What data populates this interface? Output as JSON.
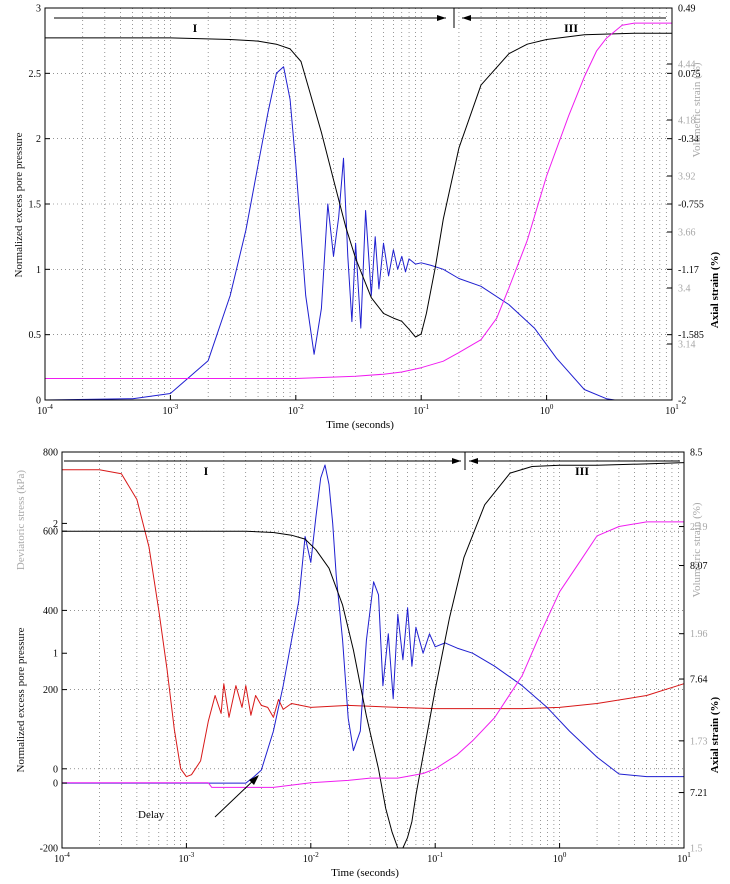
{
  "colors": {
    "black": "#000000",
    "blue": "#1f1fd0",
    "magenta": "#f01cf0",
    "red": "#d81818",
    "gray_label": "#a8a8a8"
  },
  "chart_data": [
    {
      "type": "line",
      "xscale": "log",
      "xlim": [
        0.0001,
        10
      ],
      "xlabel": "Time (seconds)",
      "x_ticks": [
        "10^-4",
        "10^-3",
        "10^-2",
        "10^-1",
        "10^0",
        "10^1"
      ],
      "grid": true,
      "phase_labels": {
        "phase_1": "I",
        "phase_3": "III",
        "boundary_x": 0.17
      },
      "axes": {
        "left": {
          "label": "Normalized excess pore pressure",
          "lim": [
            0,
            3
          ],
          "ticks": [
            "0",
            "0.5",
            "1",
            "1.5",
            "2",
            "2.5",
            "3"
          ]
        },
        "right_outer": {
          "label": "Axial strain (%)",
          "lim": [
            -2,
            0.49
          ],
          "ticks": [
            "-2",
            "-1.585",
            "-1.17",
            "-0.755",
            "-0.34",
            "0.075",
            "0.49"
          ]
        },
        "right_inner": {
          "label": "Volumetric strain (%)",
          "lim": [
            2.88,
            4.7
          ],
          "ticks": [
            "3.14",
            "3.4",
            "3.66",
            "3.92",
            "4.18",
            "4.44"
          ]
        }
      },
      "series": [
        {
          "axis": "left",
          "color": "blue",
          "x": [
            0.0001,
            0.0005,
            0.001,
            0.002,
            0.003,
            0.004,
            0.005,
            0.006,
            0.007,
            0.008,
            0.009,
            0.01,
            0.012,
            0.014,
            0.016,
            0.018,
            0.02,
            0.022,
            0.024,
            0.026,
            0.028,
            0.03,
            0.033,
            0.036,
            0.04,
            0.043,
            0.046,
            0.05,
            0.055,
            0.06,
            0.065,
            0.07,
            0.075,
            0.08,
            0.09,
            0.1,
            0.12,
            0.15,
            0.2,
            0.3,
            0.5,
            0.8,
            1.2,
            2,
            3,
            3.5,
            5,
            10
          ],
          "y": [
            0,
            0.01,
            0.05,
            0.3,
            0.8,
            1.3,
            1.8,
            2.2,
            2.5,
            2.55,
            2.3,
            1.8,
            0.8,
            0.35,
            0.7,
            1.5,
            1.1,
            1.4,
            1.85,
            1.1,
            0.6,
            1.2,
            0.55,
            1.45,
            0.8,
            1.25,
            0.85,
            1.2,
            0.95,
            1.15,
            1.0,
            1.1,
            0.98,
            1.08,
            1.04,
            1.05,
            1.03,
            1.0,
            0.93,
            0.87,
            0.73,
            0.55,
            0.32,
            0.08,
            0.01,
            0.0,
            0.0,
            0.0
          ]
        },
        {
          "axis": "right_outer",
          "color": "black",
          "x": [
            0.0001,
            0.001,
            0.003,
            0.005,
            0.007,
            0.009,
            0.011,
            0.013,
            0.016,
            0.02,
            0.025,
            0.03,
            0.04,
            0.05,
            0.06,
            0.07,
            0.08,
            0.09,
            0.1,
            0.11,
            0.13,
            0.15,
            0.2,
            0.3,
            0.5,
            0.7,
            1,
            2,
            5,
            10
          ],
          "y": [
            0.3,
            0.3,
            0.29,
            0.28,
            0.26,
            0.23,
            0.15,
            -0.05,
            -0.3,
            -0.6,
            -0.9,
            -1.1,
            -1.35,
            -1.45,
            -1.48,
            -1.5,
            -1.55,
            -1.6,
            -1.58,
            -1.45,
            -1.15,
            -0.85,
            -0.4,
            0.0,
            0.2,
            0.26,
            0.29,
            0.32,
            0.33,
            0.33
          ]
        },
        {
          "axis": "right_inner",
          "color": "magenta",
          "x": [
            0.0001,
            0.002,
            0.01,
            0.03,
            0.05,
            0.07,
            0.1,
            0.15,
            0.2,
            0.3,
            0.4,
            0.5,
            0.7,
            1,
            1.5,
            2,
            2.5,
            3,
            4,
            5,
            10
          ],
          "y": [
            2.98,
            2.98,
            2.98,
            2.99,
            3.0,
            3.01,
            3.03,
            3.06,
            3.1,
            3.16,
            3.26,
            3.4,
            3.62,
            3.92,
            4.2,
            4.38,
            4.5,
            4.56,
            4.62,
            4.63,
            4.63
          ]
        }
      ]
    },
    {
      "type": "line",
      "xscale": "log",
      "xlim": [
        0.0001,
        10
      ],
      "xlabel": "Time (seconds)",
      "x_ticks": [
        "10^-4",
        "10^-3",
        "10^-2",
        "10^-1",
        "10^0",
        "10^1"
      ],
      "grid": true,
      "phase_labels": {
        "phase_1": "I",
        "phase_3": "III",
        "boundary_x": 0.17
      },
      "annotation": "Delay",
      "axes": {
        "left_outer": {
          "label": "Deviatoric stress (kPa)",
          "lim": [
            -200,
            800
          ],
          "ticks": [
            "-200",
            "0",
            "200",
            "400",
            "600",
            "800"
          ]
        },
        "left_inner": {
          "label": "Normalized excess pore pressure",
          "lim": [
            -0.5,
            2.55
          ],
          "ticks": [
            "0",
            "1",
            "2"
          ]
        },
        "right_outer": {
          "label": "Axial strain (%)",
          "lim": [
            7.0,
            8.5
          ],
          "ticks": [
            "7.21",
            "7.64",
            "8.07",
            "8.5"
          ]
        },
        "right_inner": {
          "label": "Volumetric strain (%)",
          "lim": [
            1.5,
            2.35
          ],
          "ticks": [
            "1.5",
            "1.73",
            "1.96",
            "2.19"
          ]
        }
      },
      "series": [
        {
          "axis": "left_outer",
          "color": "red",
          "x": [
            0.0001,
            0.0002,
            0.0003,
            0.0004,
            0.0005,
            0.0006,
            0.0007,
            0.0008,
            0.0009,
            0.001,
            0.0011,
            0.0013,
            0.0015,
            0.0017,
            0.0019,
            0.002,
            0.0022,
            0.0025,
            0.0028,
            0.003,
            0.0033,
            0.0036,
            0.004,
            0.0045,
            0.005,
            0.0055,
            0.006,
            0.007,
            0.01,
            0.02,
            0.05,
            0.1,
            0.2,
            0.5,
            1,
            2,
            5,
            10
          ],
          "y": [
            755,
            755,
            745,
            680,
            560,
            400,
            250,
            100,
            0,
            -20,
            -15,
            20,
            120,
            185,
            140,
            215,
            130,
            210,
            155,
            210,
            135,
            185,
            160,
            155,
            130,
            175,
            150,
            165,
            155,
            160,
            155,
            152,
            152,
            152,
            155,
            165,
            185,
            215
          ]
        },
        {
          "axis": "left_inner",
          "color": "blue",
          "x": [
            0.0001,
            0.001,
            0.002,
            0.003,
            0.0035,
            0.004,
            0.005,
            0.006,
            0.007,
            0.008,
            0.009,
            0.01,
            0.011,
            0.012,
            0.013,
            0.014,
            0.015,
            0.016,
            0.018,
            0.02,
            0.022,
            0.025,
            0.028,
            0.032,
            0.035,
            0.038,
            0.042,
            0.046,
            0.05,
            0.055,
            0.06,
            0.065,
            0.07,
            0.08,
            0.09,
            0.1,
            0.12,
            0.15,
            0.2,
            0.3,
            0.5,
            0.8,
            1.2,
            2,
            3,
            5,
            10
          ],
          "y": [
            0,
            0.0,
            0.0,
            0.0,
            0.05,
            0.1,
            0.4,
            0.75,
            1.1,
            1.4,
            1.9,
            1.7,
            2.05,
            2.35,
            2.45,
            2.3,
            2.0,
            1.6,
            1.1,
            0.5,
            0.25,
            0.4,
            1.1,
            1.55,
            1.45,
            0.75,
            1.15,
            0.65,
            1.3,
            0.95,
            1.35,
            0.9,
            1.2,
            1.0,
            1.15,
            1.05,
            1.08,
            1.04,
            1.0,
            0.9,
            0.75,
            0.58,
            0.4,
            0.2,
            0.07,
            0.05,
            0.05
          ]
        },
        {
          "axis": "right_outer",
          "color": "black",
          "x": [
            0.0001,
            0.001,
            0.003,
            0.005,
            0.007,
            0.009,
            0.011,
            0.014,
            0.018,
            0.022,
            0.028,
            0.035,
            0.04,
            0.045,
            0.05,
            0.055,
            0.06,
            0.065,
            0.07,
            0.08,
            0.1,
            0.13,
            0.17,
            0.25,
            0.4,
            0.6,
            1,
            2,
            5,
            10
          ],
          "y": [
            8.2,
            8.2,
            8.2,
            8.195,
            8.185,
            8.17,
            8.13,
            8.06,
            7.92,
            7.75,
            7.5,
            7.3,
            7.15,
            7.06,
            7.0,
            7.0,
            7.04,
            7.1,
            7.2,
            7.35,
            7.6,
            7.87,
            8.1,
            8.3,
            8.42,
            8.445,
            8.45,
            8.45,
            8.455,
            8.46
          ]
        },
        {
          "axis": "right_inner",
          "color": "magenta",
          "x": [
            0.0001,
            0.0005,
            0.001,
            0.0015,
            0.0016,
            0.002,
            0.003,
            0.005,
            0.01,
            0.02,
            0.03,
            0.05,
            0.08,
            0.1,
            0.15,
            0.2,
            0.3,
            0.5,
            0.7,
            1,
            1.5,
            2,
            3,
            5,
            10
          ],
          "y": [
            1.64,
            1.64,
            1.64,
            1.64,
            1.63,
            1.63,
            1.63,
            1.63,
            1.64,
            1.645,
            1.65,
            1.65,
            1.66,
            1.67,
            1.7,
            1.73,
            1.78,
            1.87,
            1.96,
            2.05,
            2.12,
            2.17,
            2.19,
            2.2,
            2.2
          ]
        }
      ]
    }
  ]
}
